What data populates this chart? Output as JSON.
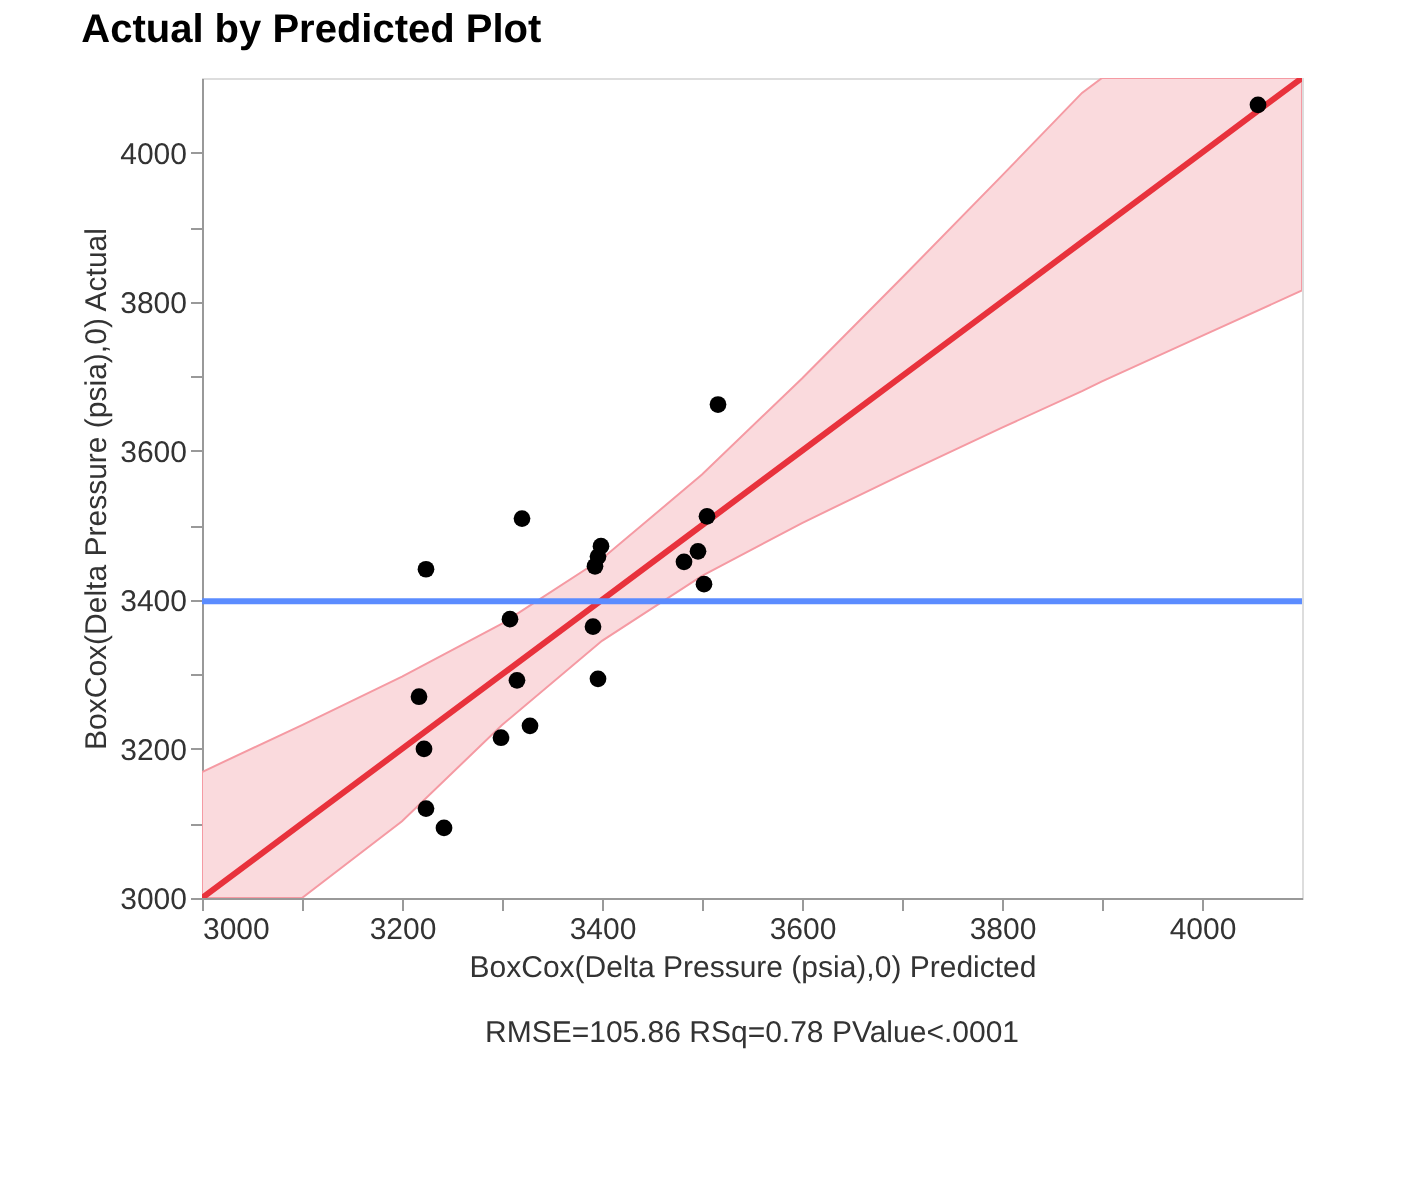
{
  "chart_data": {
    "type": "scatter",
    "title": "Actual by Predicted Plot",
    "xlabel": "BoxCox(Delta Pressure (psia),0) Predicted",
    "ylabel": "BoxCox(Delta Pressure (psia),0) Actual",
    "annotations": [
      "RMSE=105.86 RSq=0.78 PValue<.0001"
    ],
    "xlim": [
      3000,
      4100
    ],
    "ylim": [
      3000,
      4100
    ],
    "xticks": [
      3000,
      {
        "value": 3100,
        "label": null
      },
      3200,
      {
        "value": 3300,
        "label": null
      },
      3400,
      {
        "value": 3500,
        "label": null
      },
      3600,
      {
        "value": 3700,
        "label": null
      },
      3800,
      {
        "value": 3900,
        "label": null
      },
      4000
    ],
    "yticks": [
      3000,
      {
        "value": 3100,
        "label": null
      },
      3200,
      {
        "value": 3300,
        "label": null
      },
      3400,
      {
        "value": 3500,
        "label": null
      },
      3600,
      {
        "value": 3700,
        "label": null
      },
      3800,
      {
        "value": 3900,
        "label": null
      },
      4000
    ],
    "grid": false,
    "marker": "circle",
    "ref_lines": [
      {
        "axis": "y",
        "value": 3398,
        "color": "#5b8cff"
      }
    ],
    "series": [
      {
        "type": "line",
        "marker": "none",
        "color": "#e8323c",
        "x": [
          3000,
          3100,
          3200,
          3300,
          3400,
          3500,
          3600,
          3700,
          3800,
          3880,
          3900,
          4000,
          4100
        ],
        "values": [
          3000,
          3100,
          3200,
          3300,
          3400,
          3500,
          3600,
          3700,
          3800,
          3880,
          3900,
          4000,
          4100
        ],
        "lower": [
          3000,
          3000,
          3103,
          3232,
          3345,
          3432,
          3503,
          3568,
          3631,
          3680,
          3693,
          3754,
          3815
        ],
        "upper": [
          3169,
          3232,
          3297,
          3368,
          3455,
          3568,
          3697,
          3832,
          3969,
          4080,
          4100,
          4100,
          4100
        ]
      },
      {
        "color": "#000000",
        "x": [
          4056,
          3516,
          3320,
          3224,
          3505,
          3399,
          3396,
          3393,
          3496,
          3482,
          3502,
          3308,
          3391,
          3315,
          3396,
          3217,
          3222,
          3328,
          3299,
          3224,
          3242
        ],
        "values": [
          4064,
          3662,
          3509,
          3441,
          3512,
          3472,
          3458,
          3445,
          3465,
          3451,
          3421,
          3374,
          3364,
          3292,
          3294,
          3270,
          3200,
          3231,
          3215,
          3120,
          3094
        ]
      }
    ]
  }
}
